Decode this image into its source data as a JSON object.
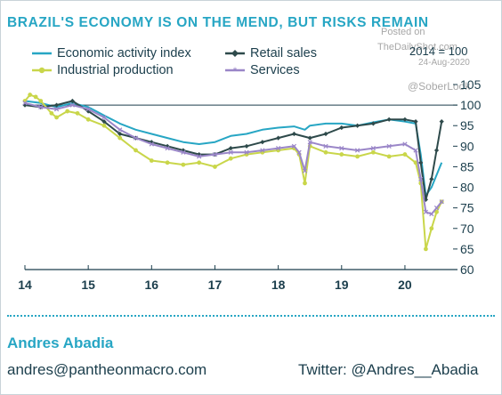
{
  "header": {
    "title": "BRAZIL'S ECONOMY IS ON THE MEND, BUT RISKS REMAIN",
    "base_label": "2014 = 100"
  },
  "watermark": {
    "line1": "Posted on",
    "line2": "TheDailyShot.com",
    "date": "24-Aug-2020",
    "handle": "@SoberLook"
  },
  "footer": {
    "author": "Andres Abadia",
    "email": "andres@pantheonmacro.com",
    "twitter": "Twitter: @Andres__Abadia"
  },
  "colors": {
    "economic_activity": "#27a6c4",
    "retail_sales": "#2e4a4b",
    "industrial_production": "#c9d64a",
    "services": "#9a86c8",
    "title": "#27a6c4",
    "text": "#1b3e4c"
  },
  "chart_data": {
    "type": "line",
    "title": "BRAZIL'S ECONOMY IS ON THE MEND, BUT RISKS REMAIN",
    "ylabel": "2014 = 100",
    "xlim": [
      2014,
      2020.83
    ],
    "ylim": [
      60,
      105
    ],
    "xticks": [
      "14",
      "15",
      "16",
      "17",
      "18",
      "19",
      "20"
    ],
    "yticks": [
      60,
      65,
      70,
      75,
      80,
      85,
      90,
      95,
      100,
      105
    ],
    "reference_line": 100,
    "legend": "top-left, two rows",
    "series": [
      {
        "name": "Economic activity index",
        "key": "economic_activity",
        "x": [
          2014.0,
          2014.25,
          2014.5,
          2014.75,
          2015.0,
          2015.25,
          2015.5,
          2015.75,
          2016.0,
          2016.25,
          2016.5,
          2016.75,
          2017.0,
          2017.25,
          2017.5,
          2017.75,
          2018.0,
          2018.25,
          2018.42,
          2018.5,
          2018.75,
          2019.0,
          2019.25,
          2019.5,
          2019.75,
          2020.0,
          2020.17,
          2020.25,
          2020.33,
          2020.42,
          2020.5,
          2020.58
        ],
        "y": [
          101,
          100.5,
          99.5,
          100.5,
          99.5,
          97.5,
          95.5,
          94,
          93,
          92,
          91,
          90.5,
          91,
          92.5,
          93,
          94,
          94.5,
          94.8,
          94,
          95,
          95.5,
          95.5,
          95,
          95.8,
          96.5,
          96,
          95.5,
          88,
          78,
          80,
          83,
          86
        ]
      },
      {
        "name": "Retail sales",
        "key": "retail_sales",
        "x": [
          2014.0,
          2014.25,
          2014.5,
          2014.75,
          2015.0,
          2015.25,
          2015.5,
          2015.75,
          2016.0,
          2016.25,
          2016.5,
          2016.75,
          2017.0,
          2017.25,
          2017.5,
          2017.75,
          2018.0,
          2018.25,
          2018.5,
          2018.75,
          2019.0,
          2019.25,
          2019.5,
          2019.75,
          2020.0,
          2020.17,
          2020.25,
          2020.33,
          2020.42,
          2020.5,
          2020.58
        ],
        "y": [
          100,
          99.5,
          100,
          101,
          98.5,
          96,
          93,
          92,
          91,
          90,
          89,
          88,
          88,
          89.5,
          90,
          91,
          92,
          93,
          92,
          93,
          94.5,
          95,
          95.5,
          96.5,
          96.5,
          96,
          86,
          77,
          82,
          89,
          96
        ]
      },
      {
        "name": "Industrial production",
        "key": "industrial_production",
        "x": [
          2014.0,
          2014.08,
          2014.17,
          2014.25,
          2014.42,
          2014.5,
          2014.67,
          2014.83,
          2015.0,
          2015.25,
          2015.5,
          2015.75,
          2016.0,
          2016.25,
          2016.5,
          2016.75,
          2017.0,
          2017.25,
          2017.5,
          2017.75,
          2018.0,
          2018.25,
          2018.33,
          2018.42,
          2018.5,
          2018.75,
          2019.0,
          2019.25,
          2019.5,
          2019.75,
          2020.0,
          2020.17,
          2020.25,
          2020.33,
          2020.42,
          2020.5,
          2020.58
        ],
        "y": [
          101,
          102.5,
          102,
          101,
          98,
          97,
          98.5,
          98,
          96.5,
          95,
          92,
          89,
          86.5,
          86,
          85.5,
          86,
          85,
          87,
          88,
          88.5,
          89,
          89.5,
          88,
          81,
          90,
          88.5,
          88,
          87.5,
          88.5,
          87.5,
          88,
          86,
          81,
          65,
          70,
          74,
          76.5
        ]
      },
      {
        "name": "Services",
        "key": "services",
        "x": [
          2014.0,
          2014.25,
          2014.5,
          2014.75,
          2015.0,
          2015.25,
          2015.5,
          2015.75,
          2016.0,
          2016.25,
          2016.5,
          2016.75,
          2017.0,
          2017.25,
          2017.5,
          2017.75,
          2018.0,
          2018.25,
          2018.33,
          2018.42,
          2018.5,
          2018.75,
          2019.0,
          2019.25,
          2019.5,
          2019.75,
          2020.0,
          2020.17,
          2020.25,
          2020.33,
          2020.42,
          2020.5,
          2020.58
        ],
        "y": [
          100.5,
          99.5,
          99,
          100,
          99,
          97,
          94,
          92,
          90.5,
          89.5,
          88.5,
          87.5,
          88,
          88.5,
          88.5,
          89,
          89.5,
          90,
          88.5,
          84,
          91,
          90,
          89.5,
          89,
          89.5,
          90,
          90.5,
          89,
          82,
          74,
          73.5,
          75,
          76.5
        ]
      }
    ]
  }
}
